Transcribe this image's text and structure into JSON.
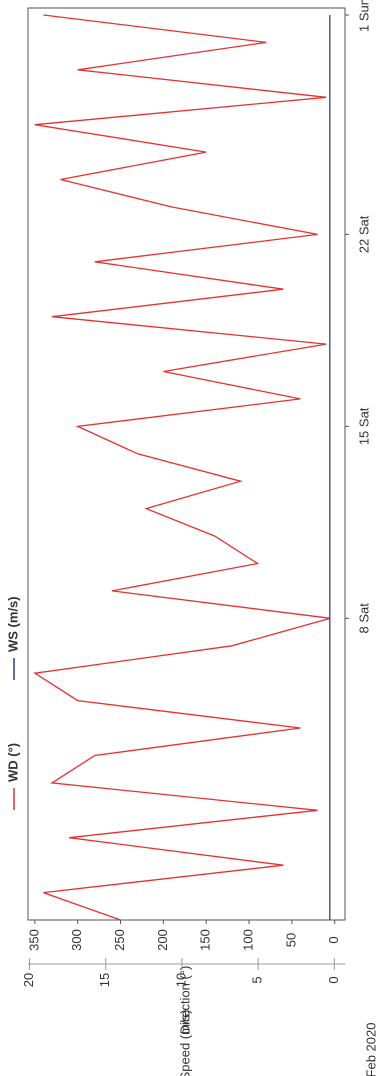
{
  "chart_data": {
    "type": "line",
    "period_label": "Feb 2020",
    "y_label": "Direction (°)",
    "y2_label": "Speed (m/s)",
    "x": [
      "2020-01-28",
      "2020-01-29",
      "2020-01-30",
      "2020-01-31",
      "2020-02-01",
      "2020-02-02",
      "2020-02-03",
      "2020-02-04",
      "2020-02-05",
      "2020-02-06",
      "2020-02-07",
      "2020-02-08",
      "2020-02-09",
      "2020-02-10",
      "2020-02-11",
      "2020-02-12",
      "2020-02-13",
      "2020-02-14",
      "2020-02-15",
      "2020-02-16",
      "2020-02-17",
      "2020-02-18",
      "2020-02-19",
      "2020-02-20",
      "2020-02-21",
      "2020-02-22",
      "2020-02-23",
      "2020-02-24",
      "2020-02-25",
      "2020-02-26",
      "2020-02-27",
      "2020-02-28",
      "2020-02-29",
      "2020-03-01"
    ],
    "series": [
      {
        "name": "WD (°)",
        "color": "#e8312f",
        "values": [
          250,
          340,
          60,
          310,
          20,
          330,
          280,
          40,
          300,
          350,
          120,
          5,
          260,
          90,
          140,
          220,
          110,
          230,
          300,
          40,
          200,
          10,
          330,
          60,
          280,
          20,
          190,
          320,
          150,
          350,
          10,
          300,
          80,
          340
        ]
      },
      {
        "name": "WS (m/s)",
        "color": "#2b3f8f",
        "axis": "y2",
        "values": [
          0.3,
          0.3,
          0.3,
          0.3,
          0.3,
          0.3,
          0.3,
          0.3,
          0.3,
          0.3,
          0.3,
          0.3,
          0.3,
          0.3,
          0.3,
          0.3,
          0.3,
          0.3,
          0.3,
          0.3,
          0.3,
          0.3,
          0.3,
          0.3,
          0.3,
          0.3,
          0.3,
          0.3,
          0.3,
          0.3,
          0.3,
          0.3,
          0.3,
          0.3
        ]
      }
    ],
    "xlim": [
      "2020-01-28",
      "2020-03-01"
    ],
    "xticks": [
      {
        "value": "2020-02-08",
        "label": "8 Sat"
      },
      {
        "value": "2020-02-15",
        "label": "15 Sat"
      },
      {
        "value": "2020-02-22",
        "label": "22 Sat"
      },
      {
        "value": "2020-03-01",
        "label": "1 Sun"
      }
    ],
    "ylim": [
      -12,
      358
    ],
    "yticks": [
      0,
      50,
      100,
      150,
      200,
      250,
      300,
      350
    ],
    "y2lim": [
      -0.7,
      20.1
    ],
    "y2ticks": [
      0,
      5,
      10,
      15,
      20
    ]
  }
}
